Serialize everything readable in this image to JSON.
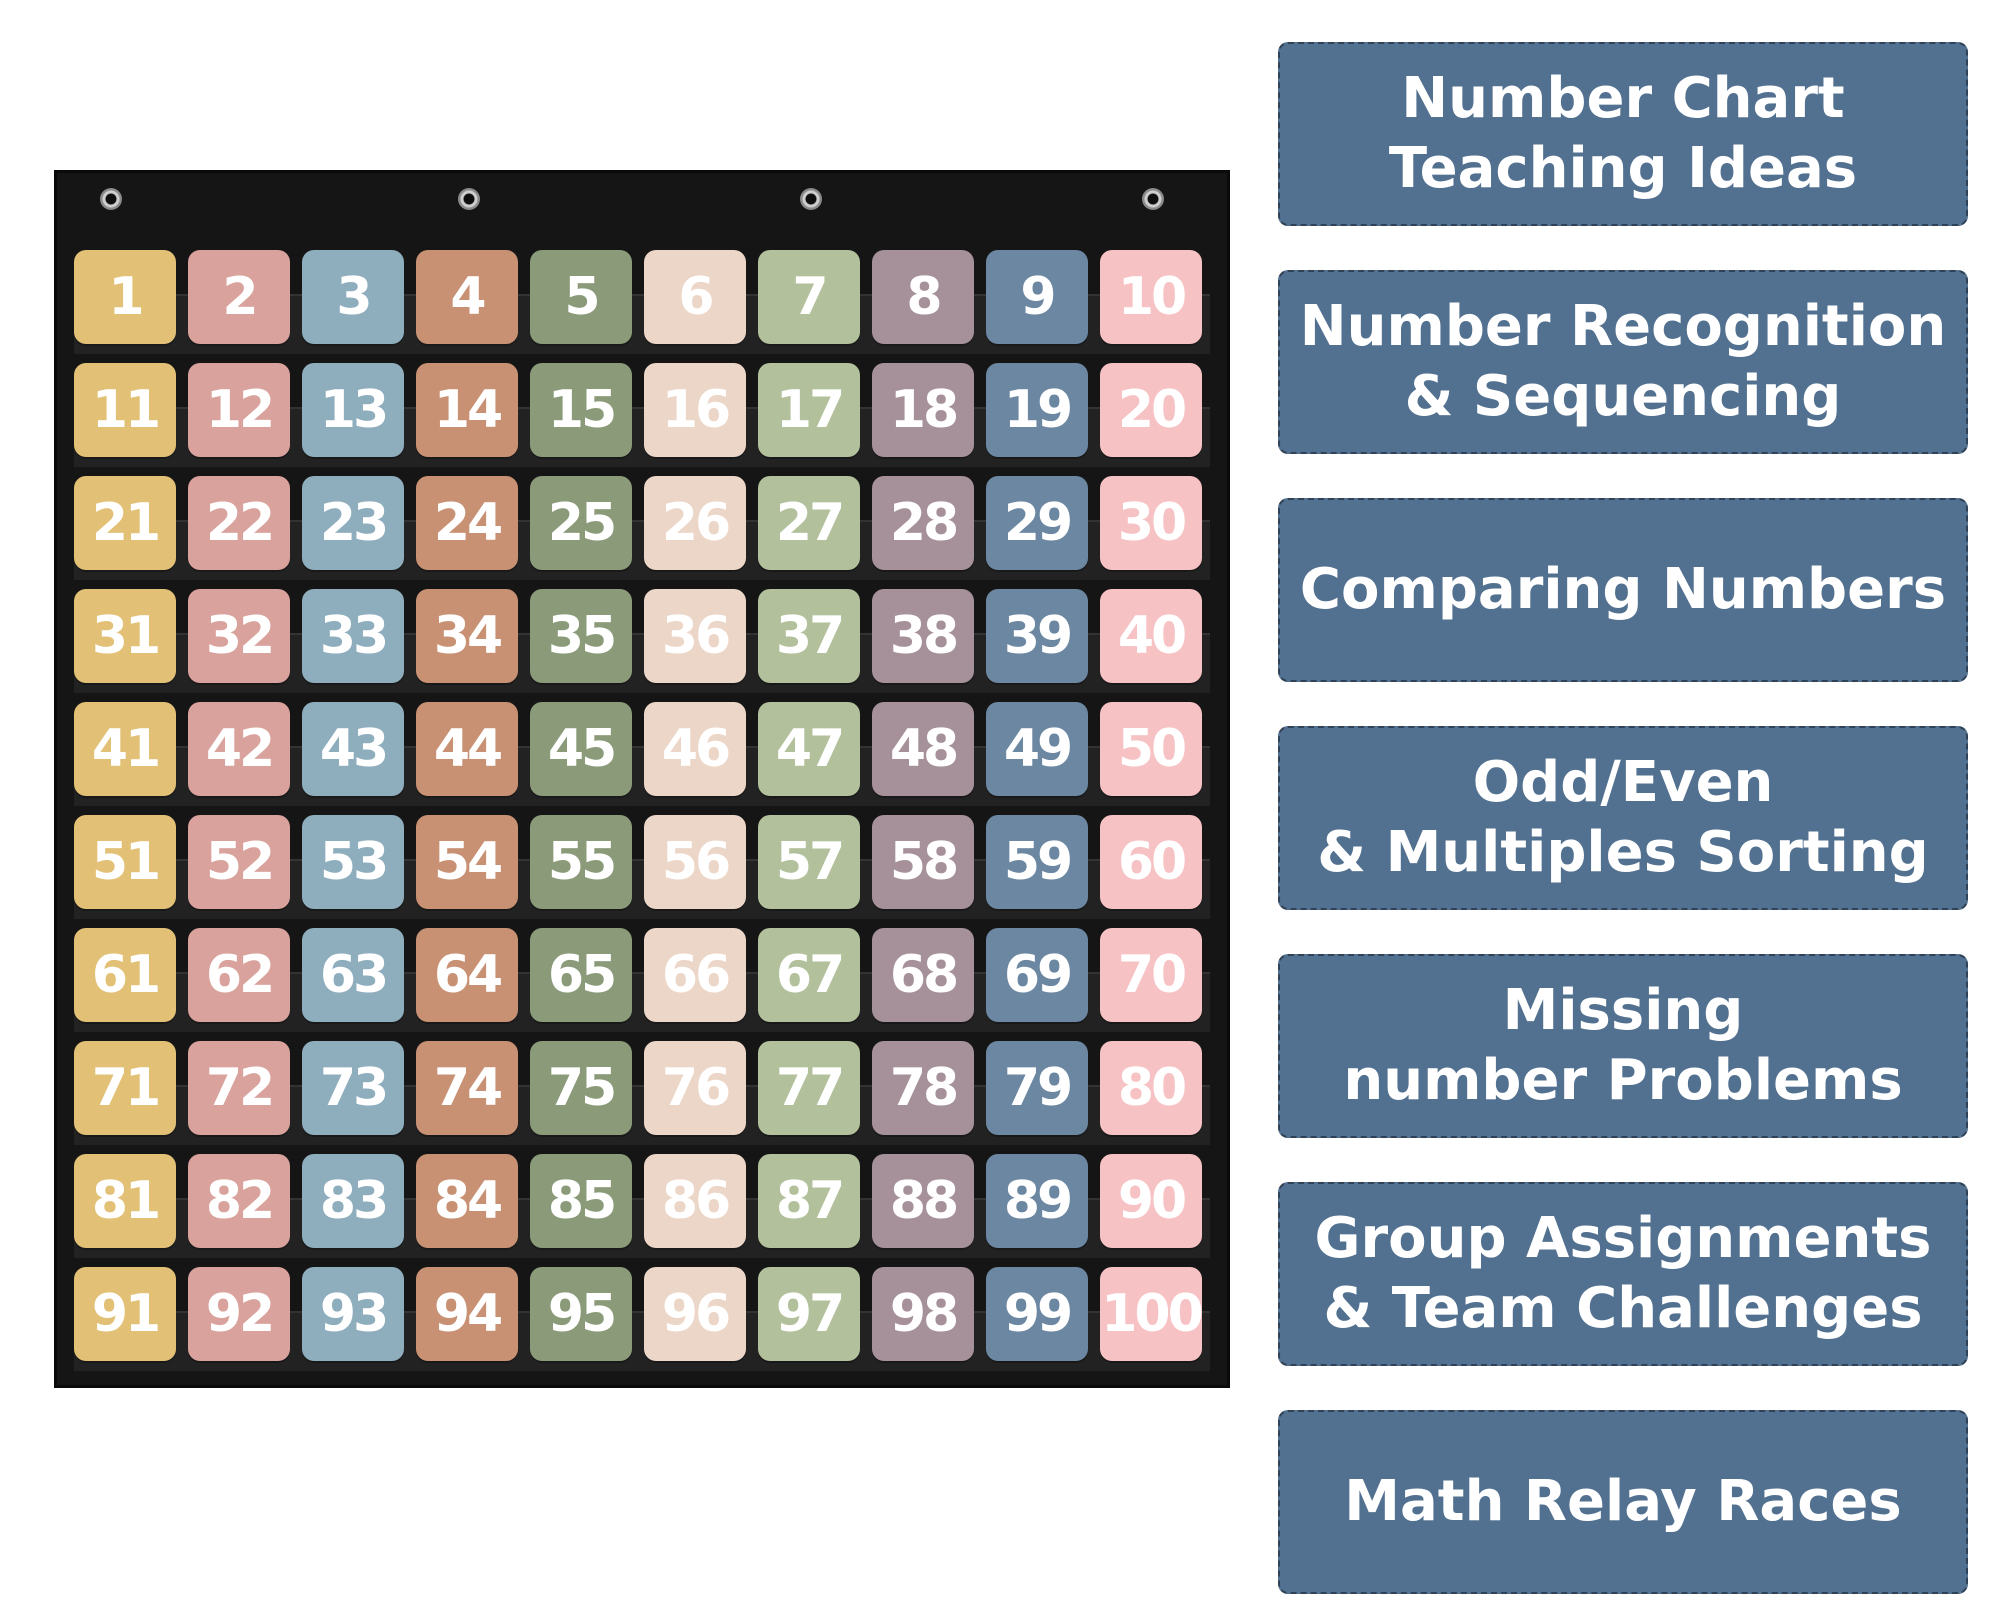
{
  "chart": {
    "numbers": [
      1,
      2,
      3,
      4,
      5,
      6,
      7,
      8,
      9,
      10,
      11,
      12,
      13,
      14,
      15,
      16,
      17,
      18,
      19,
      20,
      21,
      22,
      23,
      24,
      25,
      26,
      27,
      28,
      29,
      30,
      31,
      32,
      33,
      34,
      35,
      36,
      37,
      38,
      39,
      40,
      41,
      42,
      43,
      44,
      45,
      46,
      47,
      48,
      49,
      50,
      51,
      52,
      53,
      54,
      55,
      56,
      57,
      58,
      59,
      60,
      61,
      62,
      63,
      64,
      65,
      66,
      67,
      68,
      69,
      70,
      71,
      72,
      73,
      74,
      75,
      76,
      77,
      78,
      79,
      80,
      81,
      82,
      83,
      84,
      85,
      86,
      87,
      88,
      89,
      90,
      91,
      92,
      93,
      94,
      95,
      96,
      97,
      98,
      99,
      100
    ],
    "column_colors": [
      "#e2c176",
      "#d9a29c",
      "#8eadbd",
      "#c99174",
      "#8b9b7a",
      "#ecd6c8",
      "#b2c09b",
      "#a6919a",
      "#6c87a1",
      "#f7c2c4"
    ],
    "background_color": "#151515"
  },
  "ideas": {
    "card_color": "#52708f",
    "cards": [
      {
        "lines": [
          "Number Chart",
          "Teaching Ideas"
        ]
      },
      {
        "lines": [
          "Number Recognition",
          "& Sequencing"
        ]
      },
      {
        "lines": [
          "Comparing Numbers"
        ]
      },
      {
        "lines": [
          "Odd/Even",
          "& Multiples Sorting"
        ]
      },
      {
        "lines": [
          "Missing",
          "number Problems"
        ]
      },
      {
        "lines": [
          "Group Assignments",
          "& Team Challenges"
        ]
      },
      {
        "lines": [
          "Math Relay Races"
        ]
      }
    ]
  }
}
